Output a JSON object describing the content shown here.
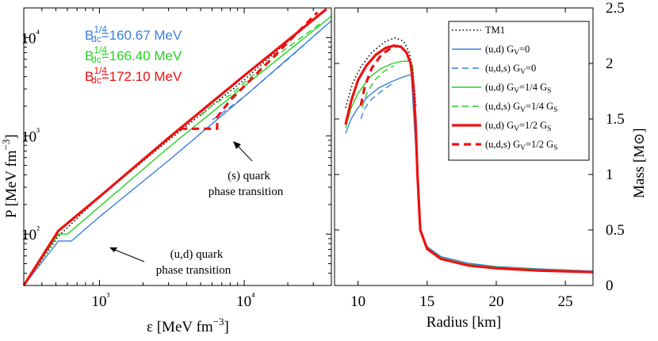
{
  "chart_data": [
    {
      "type": "line",
      "panel": "left",
      "xlabel": "ε [MeV fm⁻³]",
      "ylabel": "P [MeV fm⁻³]",
      "xscale": "log",
      "yscale": "log",
      "xlim": [
        300,
        40000
      ],
      "ylim": [
        30,
        20000
      ],
      "x_tick_labels": [
        "10³",
        "10⁴"
      ],
      "y_tick_labels": [
        "10²",
        "10³",
        "10⁴"
      ],
      "annotations": [
        {
          "lines": [
            "(u,d) quark",
            "phase transition"
          ]
        },
        {
          "lines": [
            "(s) quark",
            "phase transition"
          ]
        }
      ],
      "bdc_labels": [
        {
          "text": "=160.67 MeV",
          "color": "#3a7fde"
        },
        {
          "text": "=166.40 MeV",
          "color": "#22d422"
        },
        {
          "text": "=172.10 MeV",
          "color": "#ee1111"
        }
      ],
      "series": [
        {
          "name": "TM1",
          "color": "#000000",
          "style": "dotted",
          "x": [
            300,
            520,
            1000,
            3000,
            10000,
            30000
          ],
          "y": [
            30,
            95,
            240,
            900,
            3700,
            15500
          ]
        },
        {
          "name": "(u,d) GV=0",
          "color": "#3a7fde",
          "style": "solid",
          "x": [
            300,
            520,
            640,
            1000,
            3000,
            10000,
            40000
          ],
          "y": [
            30,
            85,
            85,
            150,
            560,
            2500,
            14800
          ]
        },
        {
          "name": "(u,d,s) GV=0",
          "color": "#3a7fde",
          "style": "dashed",
          "x": [
            6000,
            7000,
            10000,
            20000,
            35000
          ],
          "y": [
            1450,
            1700,
            2500,
            6000,
            12500
          ]
        },
        {
          "name": "(u,d) GV=1/4 GS",
          "color": "#22d422",
          "style": "solid",
          "x": [
            300,
            520,
            600,
            1000,
            3000,
            10000,
            40000
          ],
          "y": [
            30,
            100,
            100,
            190,
            760,
            3200,
            16500
          ]
        },
        {
          "name": "(u,d,s) GV=1/4 GS",
          "color": "#22d422",
          "style": "dashed",
          "x": [
            5000,
            6000,
            8000,
            15000,
            35000
          ],
          "y": [
            1600,
            2050,
            2600,
            5800,
            14500
          ]
        },
        {
          "name": "(u,d) GV=1/2 GS",
          "color": "#ee1111",
          "style": "solid",
          "x": [
            300,
            520,
            1000,
            3000,
            10000,
            37000
          ],
          "y": [
            30,
            108,
            240,
            950,
            4100,
            19500
          ]
        },
        {
          "name": "(u,d,s) GV=1/2 GS",
          "color": "#ee1111",
          "style": "dashed",
          "x": [
            3600,
            6500,
            6500,
            8000,
            15000,
            32000
          ],
          "y": [
            1180,
            1180,
            1550,
            2300,
            5800,
            18000
          ]
        }
      ]
    },
    {
      "type": "line",
      "panel": "right",
      "xlabel": "Radius  [km]",
      "ylabel": "Mass",
      "ylabel_unit": "M⊙",
      "xlim": [
        8.3,
        27
      ],
      "ylim": [
        0,
        2.5
      ],
      "x_ticks": [
        10,
        15,
        20,
        25
      ],
      "y_ticks": [
        0,
        0.5,
        1,
        1.5,
        2,
        2.5
      ],
      "x_tick_labels": [
        "10",
        "15",
        "20",
        "25"
      ],
      "y_tick_labels": [
        "0",
        "0.5",
        "1",
        "1.5",
        "2",
        "2.5"
      ],
      "legend_position": "top-right",
      "legend": [
        {
          "label": "TM1",
          "color": "#000000",
          "style": "dotted"
        },
        {
          "label": "(u,d) G",
          "sub": "V",
          "tail": "=0",
          "color": "#3a7fde",
          "style": "solid"
        },
        {
          "label": "(u,d,s) G",
          "sub": "V",
          "tail": "=0",
          "color": "#3a7fde",
          "style": "dashed"
        },
        {
          "label": "(u,d) G",
          "sub": "V",
          "tail": "=1/4 G",
          "sub2": "S",
          "color": "#22d422",
          "style": "solid"
        },
        {
          "label": "(u,d,s) G",
          "sub": "V",
          "tail": "=1/4 G",
          "sub2": "S",
          "color": "#22d422",
          "style": "dashed"
        },
        {
          "label": "(u,d) G",
          "sub": "V",
          "tail": "=1/2 G",
          "sub2": "S",
          "color": "#ee1111",
          "style": "solid"
        },
        {
          "label": "(u,d,s) G",
          "sub": "V",
          "tail": "=1/2 G",
          "sub2": "S",
          "color": "#ee1111",
          "style": "dashed"
        }
      ],
      "series": [
        {
          "name": "tail",
          "color": "#3a7fde",
          "style": "solid",
          "x": [
            13.85,
            14.05,
            14.3,
            14.5,
            15,
            16,
            18,
            20,
            23,
            27
          ],
          "y": [
            1.9,
            1.5,
            1.0,
            0.5,
            0.35,
            0.26,
            0.2,
            0.17,
            0.15,
            0.13
          ]
        },
        {
          "name": "tail",
          "color": "#22d422",
          "style": "solid",
          "x": [
            13.95,
            14.1,
            14.3,
            14.5,
            15,
            16,
            18,
            20,
            23,
            27
          ],
          "y": [
            1.98,
            1.5,
            1.0,
            0.5,
            0.34,
            0.25,
            0.19,
            0.165,
            0.145,
            0.125
          ]
        },
        {
          "name": "TM1",
          "color": "#000000",
          "style": "dotted",
          "x": [
            9.1,
            9.6,
            10.2,
            11.0,
            12.0,
            12.7,
            13.3,
            13.7,
            13.95,
            14.2
          ],
          "y": [
            1.6,
            1.82,
            1.97,
            2.1,
            2.2,
            2.23,
            2.2,
            2.1,
            1.95,
            1.6
          ]
        },
        {
          "name": "(u,d) GV=0",
          "color": "#3a7fde",
          "style": "solid",
          "x": [
            9.1,
            9.5,
            10.0,
            10.7,
            11.5,
            12.5,
            13.3,
            13.85
          ],
          "y": [
            1.37,
            1.5,
            1.6,
            1.7,
            1.78,
            1.84,
            1.88,
            1.9
          ]
        },
        {
          "name": "(u,d,s) GV=0",
          "color": "#3a7fde",
          "style": "dashed",
          "x": [
            10.2,
            10.5,
            11.0,
            11.8,
            12.5
          ],
          "y": [
            1.5,
            1.6,
            1.68,
            1.76,
            1.82
          ]
        },
        {
          "name": "(u,d) GV=1/4 GS",
          "color": "#22d422",
          "style": "solid",
          "x": [
            9.1,
            9.5,
            10.0,
            10.8,
            11.6,
            12.5,
            13.2,
            13.7,
            13.95
          ],
          "y": [
            1.42,
            1.6,
            1.73,
            1.87,
            1.95,
            2.0,
            2.02,
            2.02,
            1.98
          ]
        },
        {
          "name": "(u,d,s) GV=1/4 GS",
          "color": "#22d422",
          "style": "dashed",
          "x": [
            10.3,
            10.6,
            11.2,
            11.9,
            12.6
          ],
          "y": [
            1.6,
            1.72,
            1.85,
            1.93,
            1.98
          ]
        },
        {
          "name": "(u,d) GV=1/2 GS",
          "color": "#ee1111",
          "style": "solid",
          "x": [
            9.1,
            9.5,
            10.0,
            10.6,
            11.3,
            12.0,
            12.6,
            13.1,
            13.5,
            13.8,
            14.0,
            14.15,
            14.3,
            14.5,
            15,
            16,
            18,
            20,
            23,
            27
          ],
          "y": [
            1.45,
            1.66,
            1.85,
            1.98,
            2.08,
            2.14,
            2.16,
            2.15,
            2.1,
            2.0,
            1.8,
            1.5,
            1.0,
            0.5,
            0.33,
            0.24,
            0.18,
            0.155,
            0.135,
            0.12
          ]
        },
        {
          "name": "(u,d,s) GV=1/2 GS",
          "color": "#ee1111",
          "style": "dashed",
          "x": [
            10.2,
            10.5,
            11.0,
            11.7,
            12.4,
            12.9
          ],
          "y": [
            1.62,
            1.8,
            1.96,
            2.08,
            2.14,
            2.16
          ]
        }
      ]
    }
  ]
}
